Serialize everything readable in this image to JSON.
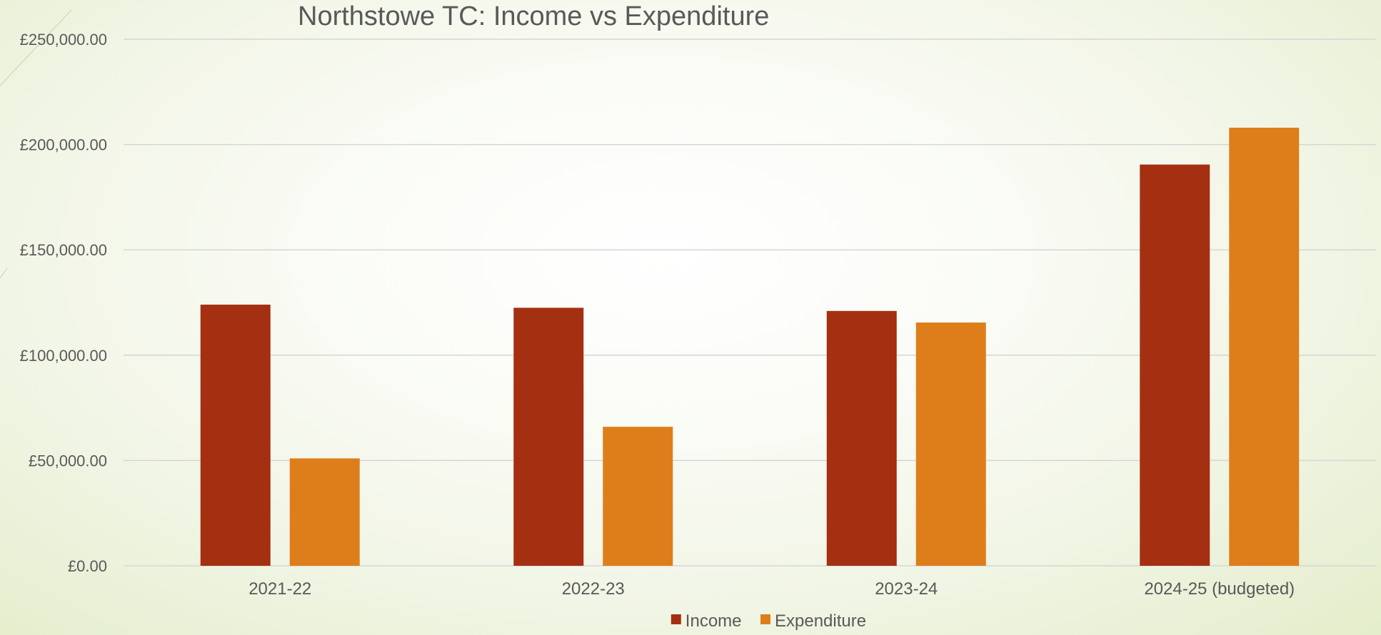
{
  "chart_data": {
    "type": "bar",
    "title": "Northstowe TC: Income vs Expenditure",
    "categories": [
      "2021-22",
      "2022-23",
      "2023-24",
      "2024-25 (budgeted)"
    ],
    "series": [
      {
        "name": "Income",
        "color": "#a52f11",
        "values": [
          124000,
          122500,
          121000,
          190500
        ]
      },
      {
        "name": "Expenditure",
        "color": "#de7e1b",
        "values": [
          51000,
          66000,
          115500,
          208000
        ]
      }
    ],
    "ylim": [
      0,
      250000
    ],
    "yticks": [
      0,
      50000,
      100000,
      150000,
      200000,
      250000
    ],
    "ytick_labels": [
      "£0.00",
      "£50,000.00",
      "£100,000.00",
      "£150,000.00",
      "£200,000.00",
      "£250,000.00"
    ],
    "xlabel": "",
    "ylabel": "",
    "grid": true,
    "legend_position": "bottom"
  }
}
